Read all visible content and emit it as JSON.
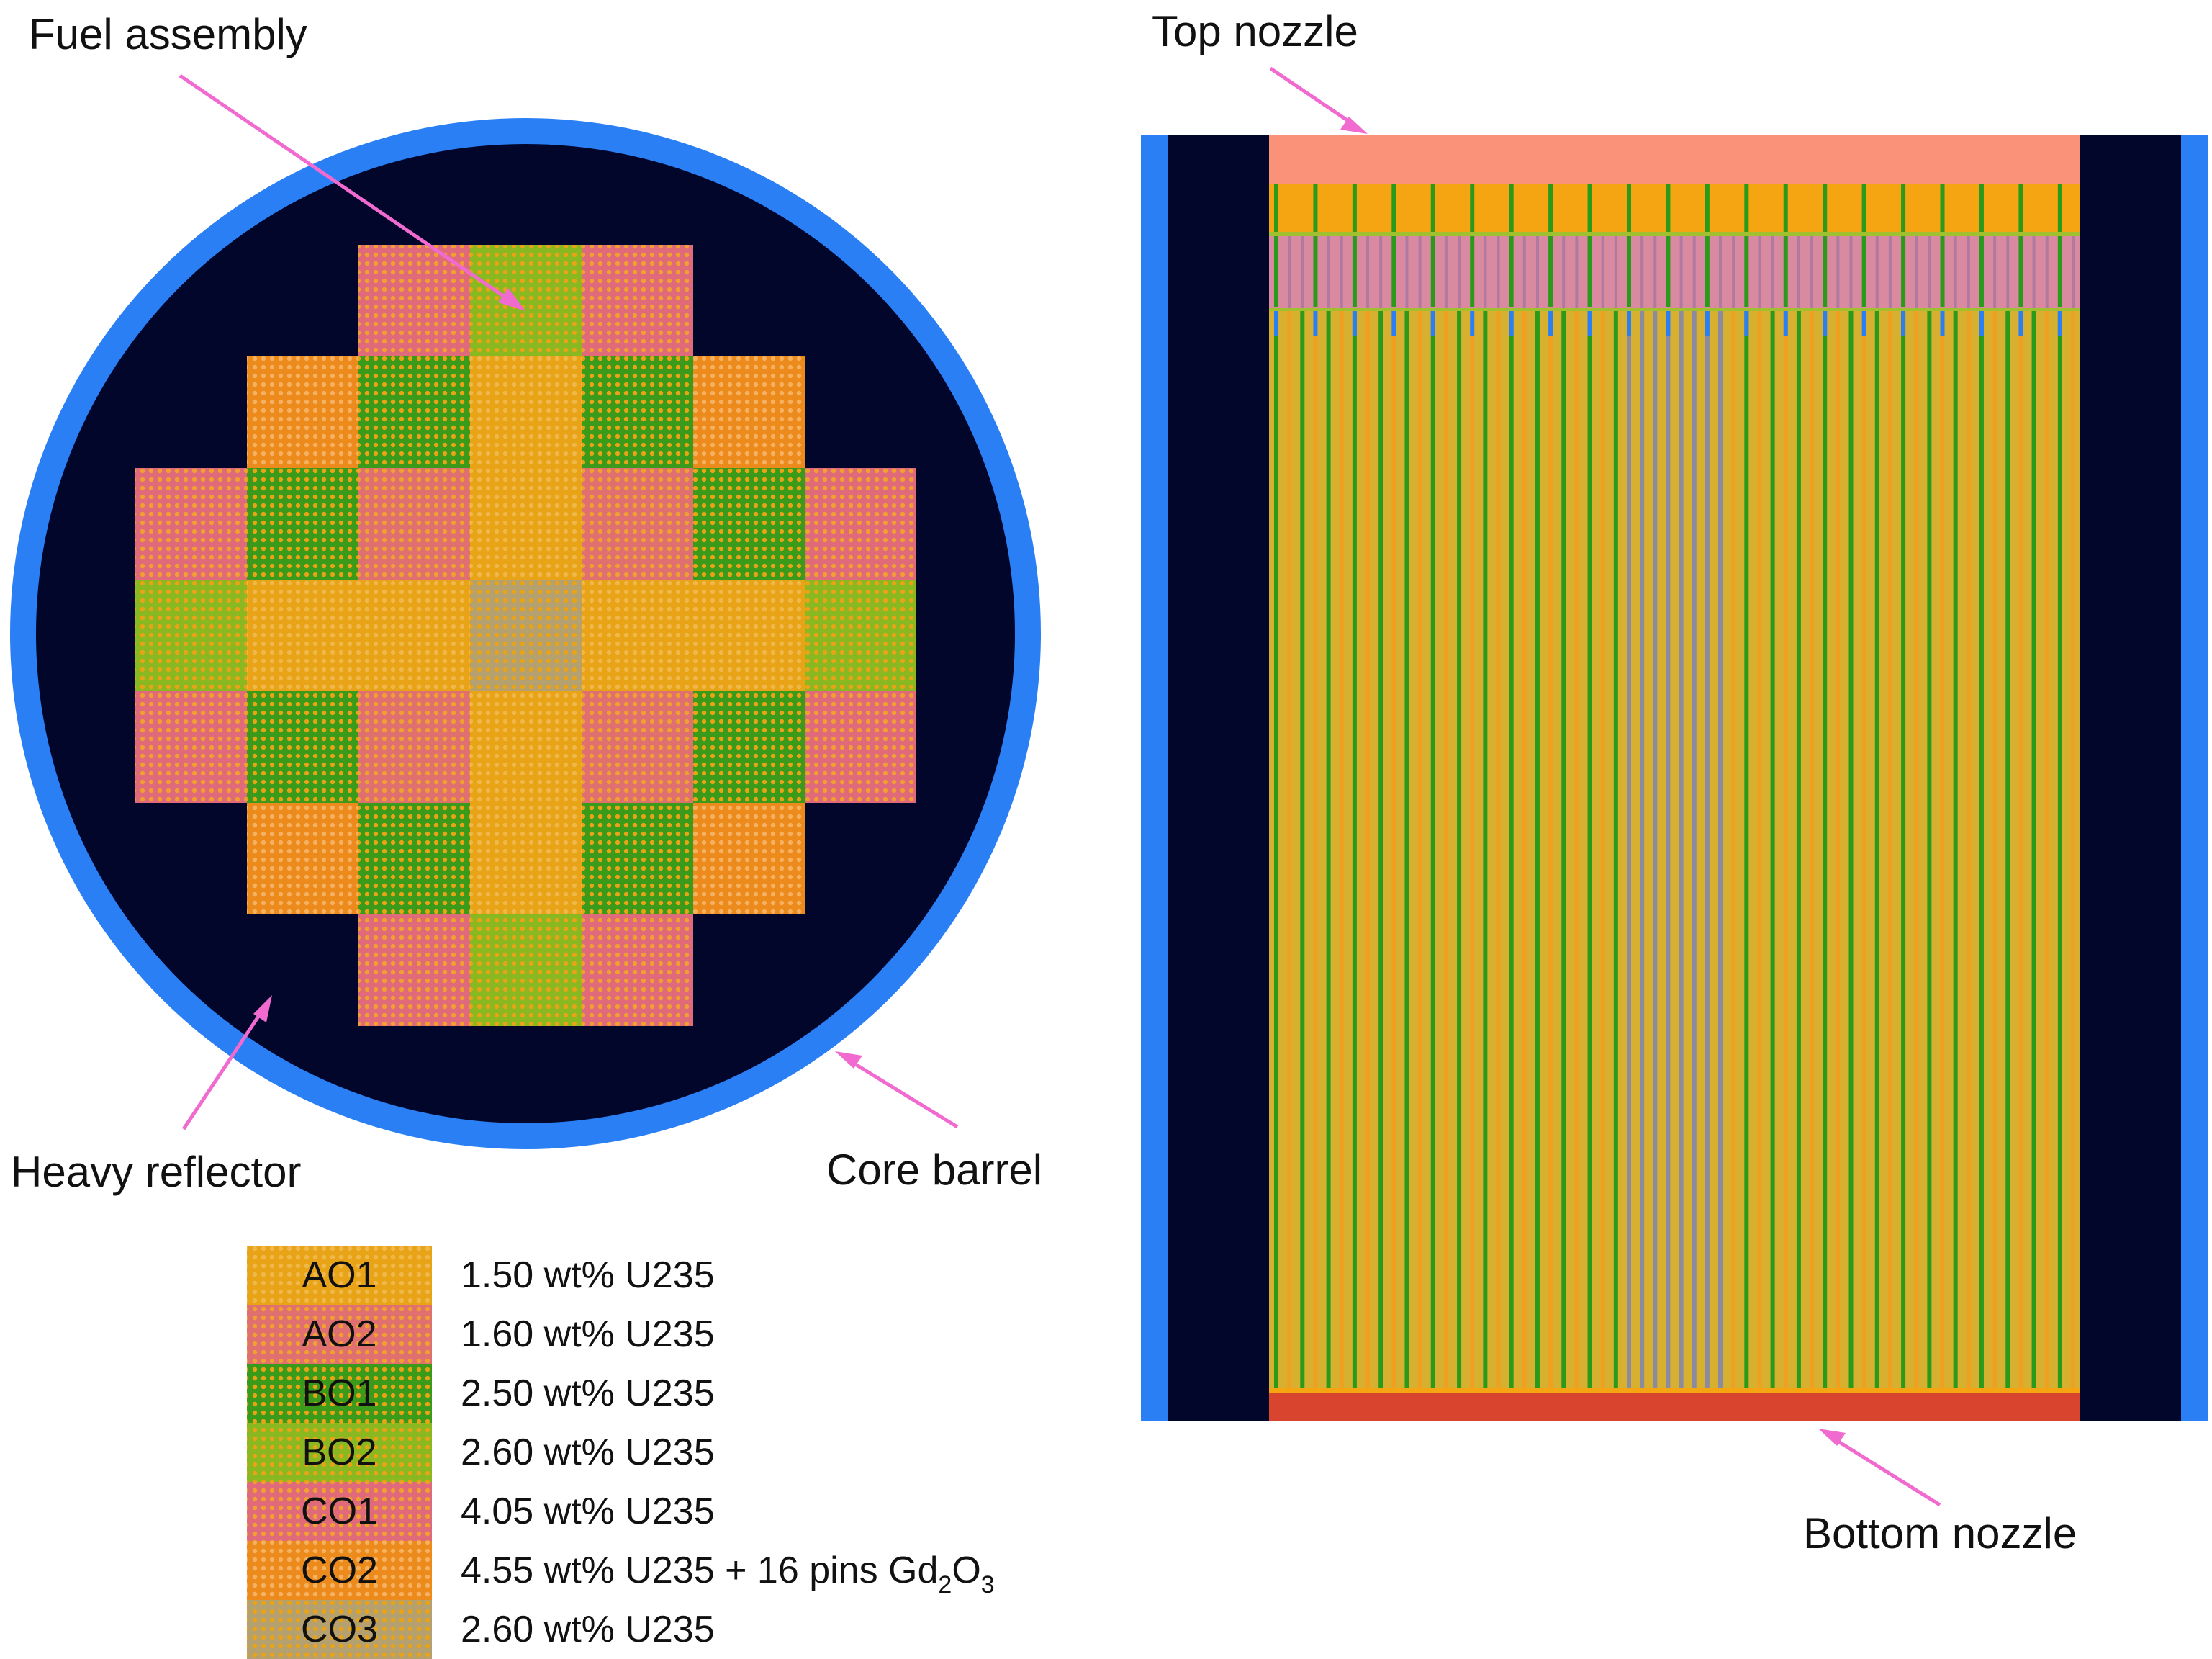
{
  "labels": {
    "fuel_assembly": "Fuel assembly",
    "heavy_reflector": "Heavy reflector",
    "core_barrel": "Core barrel",
    "top_nozzle": "Top nozzle",
    "bottom_nozzle": "Bottom nozzle"
  },
  "assembly_types": [
    {
      "code": "AO1",
      "description": "1.50 wt% U235",
      "base": "#e8a317",
      "pattern": "#f0b84a"
    },
    {
      "code": "AO2",
      "description": "1.60 wt% U235",
      "base": "#e07070",
      "pattern": "#f0a030"
    },
    {
      "code": "BO1",
      "description": "2.50 wt% U235",
      "base": "#3a9a1a",
      "pattern": "#e8a317"
    },
    {
      "code": "BO2",
      "description": "2.60 wt% U235",
      "base": "#8ab820",
      "pattern": "#e8a317"
    },
    {
      "code": "CO1",
      "description": "4.05 wt% U235",
      "base": "#e06a7a",
      "pattern": "#f0a030"
    },
    {
      "code": "CO2",
      "description_main": "4.55 wt% U235 + 16 pins Gd",
      "sub1": "2",
      "mid": "O",
      "sub2": "3",
      "base": "#ec8a1c",
      "pattern": "#f5b060"
    },
    {
      "code": "CO3",
      "description": "2.60 wt% U235",
      "base": "#b5a070",
      "pattern": "#e8a317"
    }
  ],
  "core_map": [
    [
      "",
      "",
      "CO1",
      "BO2",
      "CO1",
      "",
      ""
    ],
    [
      "",
      "CO2",
      "BO1",
      "AO1",
      "BO1",
      "CO2",
      ""
    ],
    [
      "CO1",
      "BO1",
      "AO2",
      "AO1",
      "AO2",
      "BO1",
      "CO1"
    ],
    [
      "BO2",
      "AO1",
      "AO1",
      "CO3",
      "AO1",
      "AO1",
      "BO2"
    ],
    [
      "CO1",
      "BO1",
      "AO2",
      "AO1",
      "AO2",
      "BO1",
      "CO1"
    ],
    [
      "",
      "CO2",
      "BO1",
      "AO1",
      "BO1",
      "CO2",
      ""
    ],
    [
      "",
      "",
      "CO1",
      "BO2",
      "CO1",
      "",
      ""
    ]
  ],
  "colors": {
    "reflector": "#02062a",
    "barrel": "#2a7ff5",
    "top_nozzle": "#fa9179",
    "bottom_nozzle": "#d9442e",
    "arrow": "#f06ad0",
    "plenum_orange": "#f5a412",
    "plenum_pink": "#d97a9a",
    "rod_green": "#2a9a1a",
    "rod_yellow": "#e8b020",
    "rod_gray": "#8a8aa0"
  }
}
